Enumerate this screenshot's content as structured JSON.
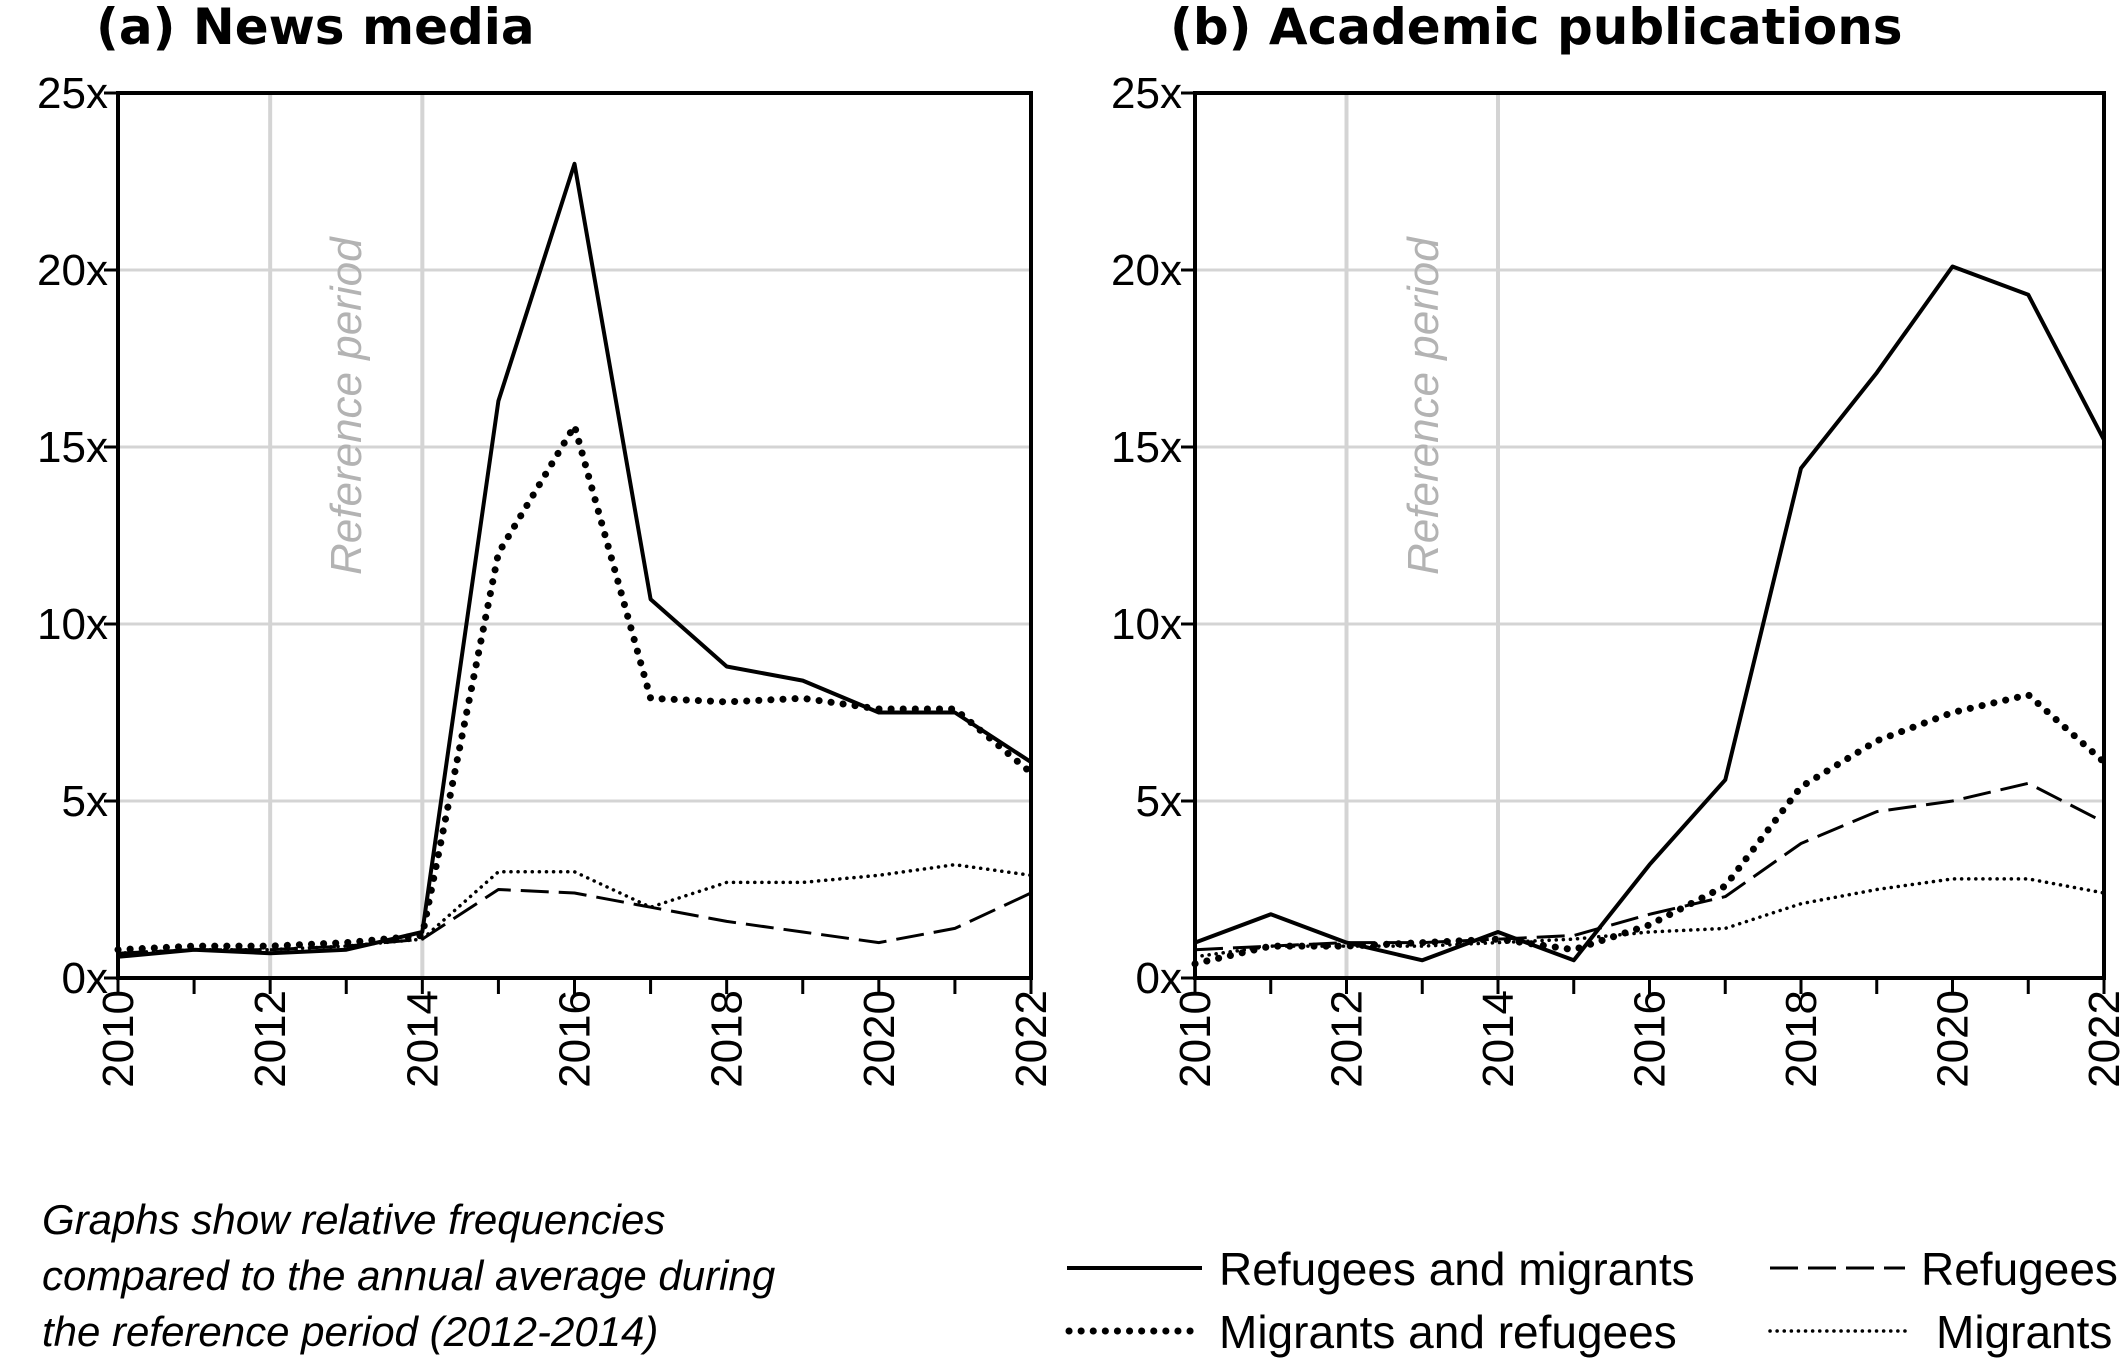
{
  "chart_data": [
    {
      "type": "line",
      "title": "(a) News media",
      "xlabel": "",
      "ylabel": "",
      "x": [
        2010,
        2011,
        2012,
        2013,
        2014,
        2015,
        2016,
        2017,
        2018,
        2019,
        2020,
        2021,
        2022
      ],
      "xlim": [
        2010,
        2022
      ],
      "ylim": [
        0,
        25
      ],
      "x_tick_labels": [
        "2010",
        "2012",
        "2014",
        "2016",
        "2018",
        "2020",
        "2022"
      ],
      "y_tick_labels": [
        "0x",
        "5x",
        "10x",
        "15x",
        "20x",
        "25x"
      ],
      "reference_period": [
        2012,
        2014
      ],
      "reference_label": "Reference period",
      "grid": true,
      "series": [
        {
          "name": "Refugees and migrants",
          "values": [
            0.6,
            0.8,
            0.7,
            0.8,
            1.3,
            16.3,
            23.0,
            10.7,
            8.8,
            8.4,
            7.5,
            7.5,
            6.1
          ]
        },
        {
          "name": "Migrants and refugees",
          "values": [
            0.8,
            0.9,
            0.9,
            1.0,
            1.2,
            12.0,
            15.6,
            7.9,
            7.8,
            7.9,
            7.6,
            7.6,
            5.8
          ]
        },
        {
          "name": "Refugees",
          "values": [
            0.7,
            0.8,
            0.8,
            0.9,
            1.1,
            2.5,
            2.4,
            2.0,
            1.6,
            1.3,
            1.0,
            1.4,
            2.4
          ]
        },
        {
          "name": "Migrants",
          "values": [
            0.7,
            0.8,
            0.8,
            0.9,
            1.1,
            3.0,
            3.0,
            2.0,
            2.7,
            2.7,
            2.9,
            3.2,
            2.9
          ]
        }
      ]
    },
    {
      "type": "line",
      "title": "(b) Academic publications",
      "xlabel": "",
      "ylabel": "",
      "x": [
        2010,
        2011,
        2012,
        2013,
        2014,
        2015,
        2016,
        2017,
        2018,
        2019,
        2020,
        2021,
        2022
      ],
      "xlim": [
        2010,
        2022
      ],
      "ylim": [
        0,
        25
      ],
      "x_tick_labels": [
        "2010",
        "2012",
        "2014",
        "2016",
        "2018",
        "2020",
        "2022"
      ],
      "y_tick_labels": [
        "0x",
        "5x",
        "10x",
        "15x",
        "20x",
        "25x"
      ],
      "reference_period": [
        2012,
        2014
      ],
      "reference_label": "Reference period",
      "grid": true,
      "series": [
        {
          "name": "Refugees and migrants",
          "values": [
            1.0,
            1.8,
            1.0,
            0.5,
            1.3,
            0.5,
            3.2,
            5.6,
            14.4,
            17.1,
            20.1,
            19.3,
            15.2
          ]
        },
        {
          "name": "Migrants and refugees",
          "values": [
            0.4,
            0.9,
            0.9,
            1.0,
            1.1,
            0.8,
            1.5,
            2.6,
            5.4,
            6.7,
            7.5,
            8.0,
            6.1
          ]
        },
        {
          "name": "Refugees",
          "values": [
            0.8,
            0.9,
            1.0,
            1.0,
            1.1,
            1.2,
            1.8,
            2.3,
            3.8,
            4.7,
            5.0,
            5.5,
            4.4
          ]
        },
        {
          "name": "Migrants",
          "values": [
            0.6,
            0.9,
            0.9,
            0.9,
            1.0,
            1.1,
            1.3,
            1.4,
            2.1,
            2.5,
            2.8,
            2.8,
            2.4
          ]
        }
      ]
    }
  ],
  "note": {
    "line1": "Graphs show relative frequencies",
    "line2": "compared to the annual average during",
    "line3": "the reference period (2012-2014)"
  },
  "legend": {
    "items": [
      {
        "label": "Refugees and migrants",
        "style": "solid"
      },
      {
        "label": "Refugees",
        "style": "dashed"
      },
      {
        "label": "Migrants and refugees",
        "style": "dotted-bold"
      },
      {
        "label": "Migrants",
        "style": "dotted-fine"
      }
    ]
  },
  "colors": {
    "line": "#000000",
    "grid": "#d4d4d4",
    "reference_text": "#b3b3b3"
  }
}
